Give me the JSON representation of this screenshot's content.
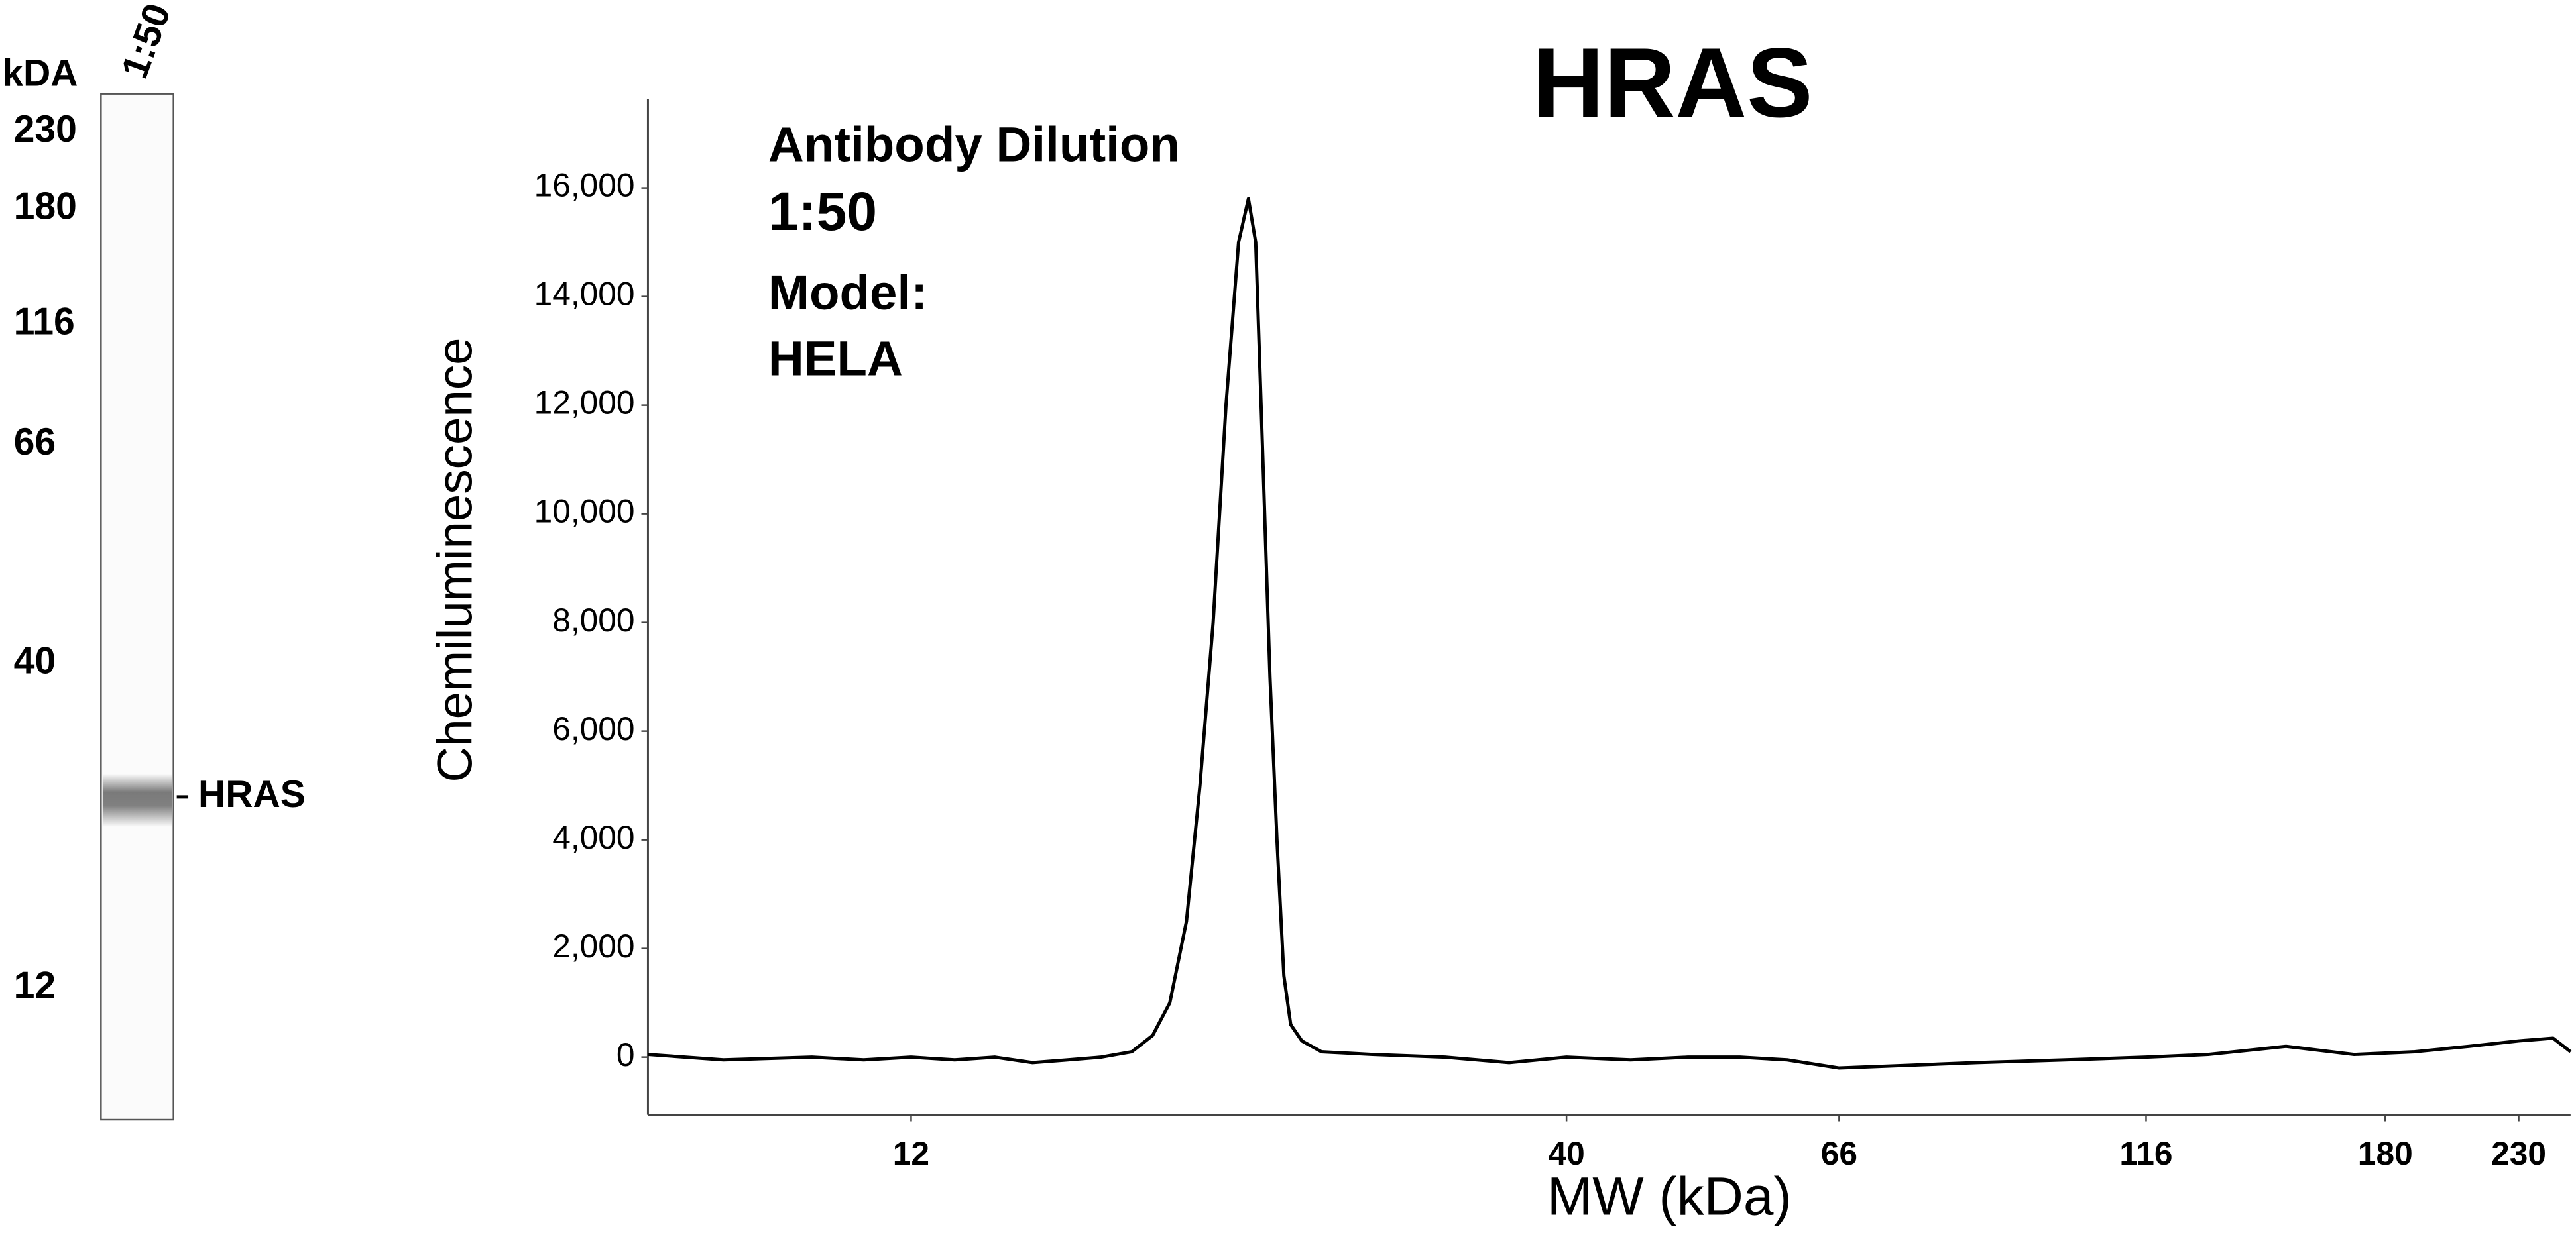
{
  "chart_data": {
    "type": "line",
    "title": "HRAS",
    "xlabel": "MW (kDa)",
    "ylabel": "Chemiluminescence",
    "annotations": [
      "Antibody Dilution",
      "1:50",
      "Model:",
      "HELA"
    ],
    "color": "#000000",
    "xscale": "log",
    "grid": false,
    "x": [
      7.4,
      8.5,
      10,
      11,
      12,
      13,
      14,
      15,
      16,
      17,
      18,
      18.7,
      19.3,
      19.9,
      20.4,
      20.9,
      21.4,
      21.9,
      22.3,
      22.6,
      22.9,
      23.2,
      23.5,
      23.8,
      24.1,
      24.6,
      25.5,
      28,
      32,
      36,
      40,
      45,
      50,
      55,
      60,
      66,
      75,
      85,
      100,
      116,
      130,
      150,
      170,
      190,
      210,
      230,
      245,
      253
    ],
    "values": [
      50,
      -50,
      0,
      -50,
      0,
      -50,
      0,
      -100,
      -50,
      0,
      100,
      400,
      1000,
      2500,
      5000,
      8000,
      12000,
      15000,
      15800,
      15000,
      11000,
      7000,
      4000,
      1500,
      600,
      300,
      100,
      50,
      0,
      -100,
      0,
      -50,
      0,
      0,
      -50,
      -200,
      -150,
      -100,
      -50,
      0,
      50,
      200,
      50,
      100,
      200,
      300,
      350,
      100
    ],
    "xlim": [
      7.4,
      253
    ],
    "xticks": [
      12,
      40,
      66,
      116,
      180,
      230
    ],
    "ylim": [
      -1060,
      17640
    ],
    "yticks": [
      0,
      {
        "value": 2000,
        "label": "2,000"
      },
      {
        "value": 4000,
        "label": "4,000"
      },
      {
        "value": 6000,
        "label": "6,000"
      },
      {
        "value": 8000,
        "label": "8,000"
      },
      {
        "value": 10000,
        "label": "10,000"
      },
      {
        "value": 12000,
        "label": "12,000"
      },
      {
        "value": 14000,
        "label": "14,000"
      },
      {
        "value": 16000,
        "label": "16,000"
      }
    ]
  },
  "gel": {
    "unit": "kDA",
    "lane": "1:50",
    "markers": [
      "230",
      "180",
      "116",
      "66",
      "40",
      "12"
    ],
    "band": "HRAS"
  }
}
